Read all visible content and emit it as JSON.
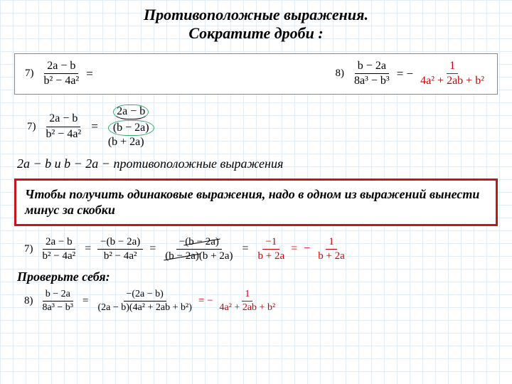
{
  "colors": {
    "red": "#c00020",
    "box_red": "#c01818",
    "grid": "#c8d8e8",
    "green": "#3a6"
  },
  "fonts": {
    "family": "Times New Roman",
    "title_size": 22,
    "body_size": 18,
    "math_size": 17
  },
  "title_l1": "Противоположные выражения.",
  "title_l2": "Сократите дроби :",
  "p7": {
    "label": "7)",
    "num": "2a − b",
    "den": "b² − 4a²",
    "after": "="
  },
  "p8": {
    "label": "8)",
    "num": "b − 2a",
    "den": "8a³ − b³",
    "eq": "= −",
    "r_num": "1",
    "r_den": "4a² + 2ab + b²"
  },
  "s7b": {
    "label": "7)",
    "l_num": "2a − b",
    "l_den": "b² − 4a²",
    "eq": "=",
    "r_num": "2a − b",
    "r_den": "(b − 2a)(b + 2a)"
  },
  "stmt1": "2a − b  и  b − 2a − противоположные выражения",
  "redbox": "Чтобы получить одинаковые выражения, надо в одном из выражений вынести минус за скобки",
  "s7c": {
    "label": "7)",
    "f1_n": "2a − b",
    "f1_d": "b² − 4a²",
    "f2_n": "−(b − 2a)",
    "f2_d": "b² − 4a²",
    "f3_n": "−(b − 2a)",
    "f3_d_l": "(b − 2a)",
    "f3_d_r": "(b + 2a)",
    "f4_n": "−1",
    "f4_d": "b + 2a",
    "f5_n": "1",
    "f5_d": "b + 2a",
    "eq": "=",
    "neg": "−"
  },
  "check": "Проверьте себя:",
  "s8b": {
    "label": "8)",
    "f1_n": "b − 2a",
    "f1_d": "8a³ − b³",
    "f2_n": "−(2a − b)",
    "f2_d": "(2a − b)(4a² + 2ab + b²)",
    "f3_n": "1",
    "f3_d": "4a² + 2ab + b²",
    "eq": "=",
    "neg": "−",
    "eqneg": "= −"
  }
}
